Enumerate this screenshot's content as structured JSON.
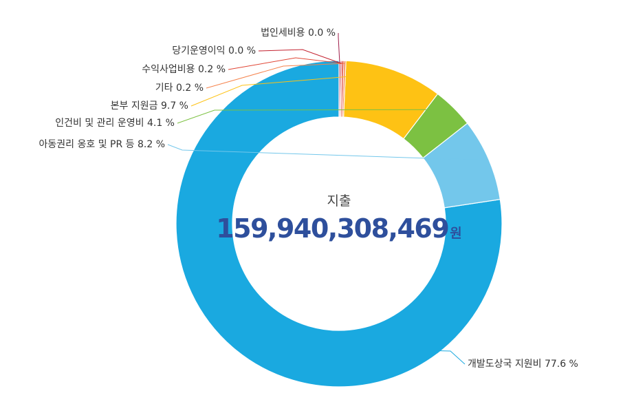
{
  "chart_data": {
    "type": "pie",
    "center_title": "지출",
    "center_value": "159,940,308,469",
    "center_unit": "원",
    "slices": [
      {
        "label": "개발도상국 지원비",
        "value": 77.6,
        "value_text": "77.6 %",
        "color": "#1aa9e0"
      },
      {
        "label": "아동권리 옹호 및 PR 등",
        "value": 8.2,
        "value_text": "8.2 %",
        "color": "#73c7eb"
      },
      {
        "label": "인건비 및 관리 운영비",
        "value": 4.1,
        "value_text": "4.1 %",
        "color": "#7cc142"
      },
      {
        "label": "본부 지원금",
        "value": 9.7,
        "value_text": "9.7 %",
        "color": "#fec214"
      },
      {
        "label": "기타",
        "value": 0.2,
        "value_text": "0.2 %",
        "color": "#f5824b"
      },
      {
        "label": "수익사업비용",
        "value": 0.2,
        "value_text": "0.2 %",
        "color": "#e04433"
      },
      {
        "label": "당기운영이익",
        "value": 0.0,
        "value_text": "0.0 %",
        "color": "#c3212f"
      },
      {
        "label": "법인세비용",
        "value": 0.0,
        "value_text": "0.0 %",
        "color": "#9e1b48"
      }
    ]
  }
}
